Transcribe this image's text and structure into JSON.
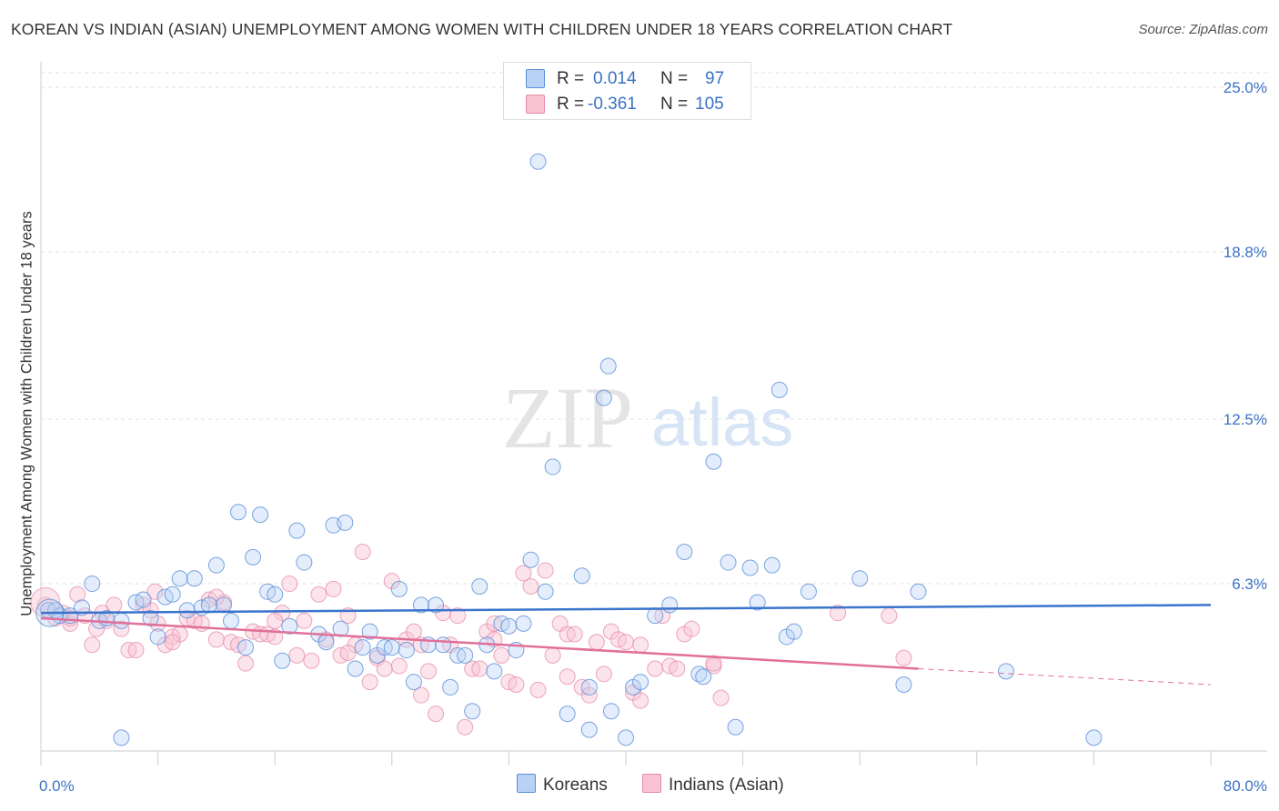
{
  "title": "KOREAN VS INDIAN (ASIAN) UNEMPLOYMENT AMONG WOMEN WITH CHILDREN UNDER 18 YEARS CORRELATION CHART",
  "source": "Source: ZipAtlas.com",
  "watermark": {
    "zip": "ZIP",
    "atlas": "atlas"
  },
  "stats": {
    "koreans": {
      "r_label": "R =",
      "r_value": "0.014",
      "n_label": "N =",
      "n_value": "97"
    },
    "indians": {
      "r_label": "R =",
      "r_value": "-0.361",
      "n_label": "N =",
      "n_value": "105"
    }
  },
  "legend": {
    "koreans": "Koreans",
    "indians": "Indians (Asian)"
  },
  "colors": {
    "blue": "#5b8fd8",
    "blue_fill": "#b8d1f5",
    "pink": "#e68aa8",
    "pink_fill": "#f9c3d3",
    "blue_line": "#3a74cc",
    "pink_line": "#e0709a",
    "axis_text": "#3b72c4"
  },
  "chart_data": {
    "type": "scatter",
    "title": "KOREAN VS INDIAN (ASIAN) UNEMPLOYMENT AMONG WOMEN WITH CHILDREN UNDER 18 YEARS CORRELATION CHART",
    "xlabel": "",
    "ylabel": "Unemployment Among Women with Children Under 18 years",
    "xlim": [
      0,
      80
    ],
    "ylim": [
      0,
      25
    ],
    "x_tick_labels": [
      "0.0%",
      "80.0%"
    ],
    "y_ticks": [
      6.3,
      12.5,
      18.8,
      25.0
    ],
    "y_tick_labels": [
      "6.3%",
      "12.5%",
      "18.8%",
      "25.0%"
    ],
    "grid": true,
    "series": [
      {
        "name": "Koreans",
        "r": 0.014,
        "n": 97,
        "trend": {
          "x": [
            0,
            80
          ],
          "y": [
            5.2,
            5.5
          ]
        },
        "points": [
          [
            0.5,
            5.3
          ],
          [
            1,
            5.3
          ],
          [
            1.3,
            5.1
          ],
          [
            2,
            5.1
          ],
          [
            2.8,
            5.4
          ],
          [
            3.5,
            6.3
          ],
          [
            4,
            4.9
          ],
          [
            4.5,
            5.0
          ],
          [
            5.5,
            4.9
          ],
          [
            6.5,
            5.6
          ],
          [
            7,
            5.7
          ],
          [
            7.5,
            5.0
          ],
          [
            8,
            4.3
          ],
          [
            8.5,
            5.8
          ],
          [
            9,
            5.9
          ],
          [
            9.5,
            6.5
          ],
          [
            10,
            5.3
          ],
          [
            10.5,
            6.5
          ],
          [
            11,
            5.4
          ],
          [
            11.5,
            5.5
          ],
          [
            12,
            7.0
          ],
          [
            12.5,
            5.5
          ],
          [
            13,
            4.9
          ],
          [
            13.5,
            9.0
          ],
          [
            14,
            3.9
          ],
          [
            14.5,
            7.3
          ],
          [
            15,
            8.9
          ],
          [
            15.5,
            6.0
          ],
          [
            16,
            5.9
          ],
          [
            16.5,
            3.4
          ],
          [
            17,
            4.7
          ],
          [
            17.5,
            8.3
          ],
          [
            18,
            7.1
          ],
          [
            19,
            4.4
          ],
          [
            19.5,
            4.1
          ],
          [
            20,
            8.5
          ],
          [
            20.5,
            4.6
          ],
          [
            20.8,
            8.6
          ],
          [
            21.5,
            3.1
          ],
          [
            22,
            3.9
          ],
          [
            22.5,
            4.5
          ],
          [
            23,
            3.6
          ],
          [
            23.5,
            3.9
          ],
          [
            24,
            3.9
          ],
          [
            24.5,
            6.1
          ],
          [
            25,
            3.8
          ],
          [
            25.5,
            2.6
          ],
          [
            26,
            5.5
          ],
          [
            26.5,
            4.0
          ],
          [
            27,
            5.5
          ],
          [
            27.5,
            4.0
          ],
          [
            28,
            2.4
          ],
          [
            28.5,
            3.6
          ],
          [
            29,
            3.6
          ],
          [
            29.5,
            1.5
          ],
          [
            30,
            6.2
          ],
          [
            30.5,
            4.0
          ],
          [
            31,
            3.0
          ],
          [
            31.5,
            4.8
          ],
          [
            32,
            4.7
          ],
          [
            32.5,
            3.8
          ],
          [
            33,
            4.8
          ],
          [
            33.5,
            7.2
          ],
          [
            34,
            22.2
          ],
          [
            34.5,
            6.0
          ],
          [
            35,
            10.7
          ],
          [
            36,
            1.4
          ],
          [
            37,
            6.6
          ],
          [
            37.5,
            2.4
          ],
          [
            37.5,
            0.8
          ],
          [
            38.5,
            13.3
          ],
          [
            38.8,
            14.5
          ],
          [
            39,
            1.5
          ],
          [
            40,
            0.5
          ],
          [
            40.5,
            2.4
          ],
          [
            41,
            2.6
          ],
          [
            42,
            5.1
          ],
          [
            43,
            5.5
          ],
          [
            44,
            7.5
          ],
          [
            45,
            2.9
          ],
          [
            45.3,
            2.8
          ],
          [
            46,
            10.9
          ],
          [
            47,
            7.1
          ],
          [
            47.5,
            0.9
          ],
          [
            48.5,
            6.9
          ],
          [
            49,
            5.6
          ],
          [
            50,
            7.0
          ],
          [
            50.5,
            13.6
          ],
          [
            51,
            4.3
          ],
          [
            51.5,
            4.5
          ],
          [
            52.5,
            6.0
          ],
          [
            56,
            6.5
          ],
          [
            59,
            2.5
          ],
          [
            60,
            6.0
          ],
          [
            66,
            3.0
          ],
          [
            5.5,
            0.5
          ],
          [
            72,
            0.5
          ]
        ]
      },
      {
        "name": "Indians (Asian)",
        "r": -0.361,
        "n": 105,
        "trend": {
          "x": [
            0,
            60
          ],
          "y": [
            5.0,
            3.1
          ]
        },
        "trend_dashed": {
          "x": [
            60,
            80
          ],
          "y": [
            3.1,
            2.5
          ]
        },
        "points": [
          [
            0.3,
            5.5
          ],
          [
            1,
            5.0
          ],
          [
            1.5,
            5.2
          ],
          [
            2,
            4.8
          ],
          [
            2.5,
            5.9
          ],
          [
            3,
            5.1
          ],
          [
            3.5,
            4.0
          ],
          [
            3.8,
            4.6
          ],
          [
            4.2,
            5.2
          ],
          [
            4.5,
            4.9
          ],
          [
            5,
            5.5
          ],
          [
            5.5,
            4.6
          ],
          [
            6,
            3.8
          ],
          [
            6.5,
            3.8
          ],
          [
            7,
            5.5
          ],
          [
            7.5,
            5.3
          ],
          [
            7.8,
            6.0
          ],
          [
            8,
            4.8
          ],
          [
            8.5,
            4.0
          ],
          [
            9,
            4.3
          ],
          [
            9.5,
            4.4
          ],
          [
            10,
            5.0
          ],
          [
            10.5,
            4.9
          ],
          [
            11,
            4.8
          ],
          [
            11.5,
            5.7
          ],
          [
            12,
            4.2
          ],
          [
            12.5,
            5.6
          ],
          [
            13,
            4.1
          ],
          [
            13.5,
            4.0
          ],
          [
            14,
            3.3
          ],
          [
            14.5,
            4.5
          ],
          [
            15,
            4.4
          ],
          [
            15.5,
            4.4
          ],
          [
            16,
            4.3
          ],
          [
            16.5,
            5.2
          ],
          [
            17,
            6.3
          ],
          [
            17.5,
            3.6
          ],
          [
            18,
            4.9
          ],
          [
            18.5,
            3.4
          ],
          [
            19,
            5.9
          ],
          [
            19.5,
            4.2
          ],
          [
            20,
            6.1
          ],
          [
            20.5,
            3.6
          ],
          [
            21,
            5.1
          ],
          [
            21.5,
            4.0
          ],
          [
            22,
            7.5
          ],
          [
            22.5,
            2.6
          ],
          [
            23,
            3.5
          ],
          [
            23.5,
            3.1
          ],
          [
            24,
            6.4
          ],
          [
            24.5,
            3.2
          ],
          [
            25,
            4.2
          ],
          [
            25.5,
            4.5
          ],
          [
            26,
            2.1
          ],
          [
            26.5,
            3.0
          ],
          [
            27,
            1.4
          ],
          [
            27.5,
            5.2
          ],
          [
            28,
            4.0
          ],
          [
            28.5,
            5.1
          ],
          [
            29,
            0.9
          ],
          [
            29.5,
            3.1
          ],
          [
            30,
            3.1
          ],
          [
            30.5,
            4.5
          ],
          [
            31,
            4.8
          ],
          [
            31.5,
            3.6
          ],
          [
            32,
            2.6
          ],
          [
            32.5,
            2.5
          ],
          [
            33,
            6.7
          ],
          [
            33.5,
            6.2
          ],
          [
            34,
            2.3
          ],
          [
            34.5,
            6.8
          ],
          [
            35,
            3.6
          ],
          [
            35.5,
            4.8
          ],
          [
            36,
            4.4
          ],
          [
            36.5,
            4.4
          ],
          [
            37,
            2.4
          ],
          [
            37.5,
            2.1
          ],
          [
            38,
            4.1
          ],
          [
            38.5,
            2.9
          ],
          [
            39,
            4.5
          ],
          [
            39.5,
            4.2
          ],
          [
            40,
            4.1
          ],
          [
            40.5,
            2.2
          ],
          [
            41,
            1.9
          ],
          [
            42,
            3.1
          ],
          [
            42.5,
            5.1
          ],
          [
            43,
            3.2
          ],
          [
            43.5,
            3.1
          ],
          [
            44,
            4.4
          ],
          [
            44.5,
            4.6
          ],
          [
            46,
            3.2
          ],
          [
            46.5,
            2.0
          ],
          [
            54.5,
            5.2
          ],
          [
            58,
            5.1
          ],
          [
            59,
            3.5
          ],
          [
            2,
            5.0
          ],
          [
            9,
            4.1
          ],
          [
            12,
            5.8
          ],
          [
            16,
            4.9
          ],
          [
            21,
            3.7
          ],
          [
            26,
            4.0
          ],
          [
            31,
            4.2
          ],
          [
            36,
            2.8
          ],
          [
            41,
            4.0
          ],
          [
            46,
            3.3
          ]
        ]
      }
    ]
  }
}
